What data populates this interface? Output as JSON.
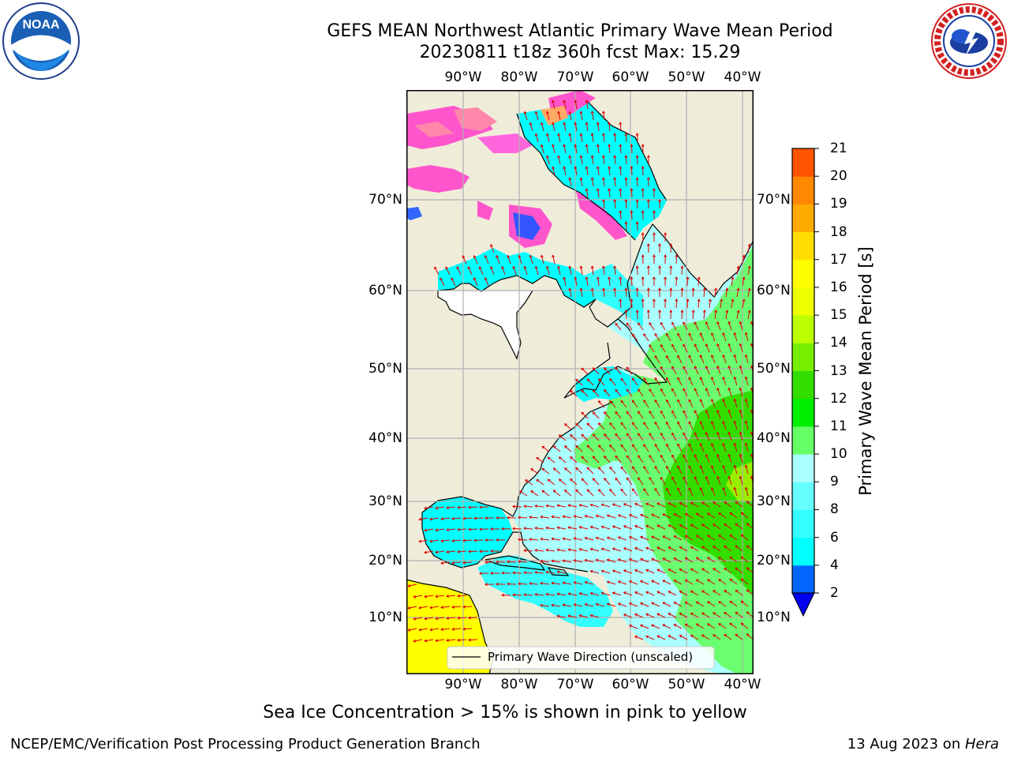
{
  "title": {
    "line1": "GEFS MEAN Northwest Atlantic Primary Wave Mean Period",
    "line2": "20230811 t18z 360h fcst   Max: 15.29"
  },
  "lon_labels": [
    "90°W",
    "80°W",
    "70°W",
    "60°W",
    "50°W",
    "40°W"
  ],
  "lat_labels": [
    "70°N",
    "60°N",
    "50°N",
    "40°N",
    "30°N",
    "20°N",
    "10°N"
  ],
  "legend": {
    "label": "Primary Wave Direction (unscaled)"
  },
  "colorbar": {
    "title": "Primary Wave Mean Period [s]",
    "ticks": [
      "2",
      "4",
      "6",
      "8",
      "9",
      "10",
      "11",
      "12",
      "13",
      "14",
      "15",
      "16",
      "17",
      "18",
      "19",
      "20",
      "21"
    ],
    "colors": [
      "#0066ff",
      "#00ffff",
      "#33ffff",
      "#66ffff",
      "#aaffff",
      "#66ff66",
      "#00ee00",
      "#33dd00",
      "#77ee00",
      "#bbff00",
      "#eeff00",
      "#ffff00",
      "#ffdd00",
      "#ffaa00",
      "#ff8800",
      "#ff5500",
      "#ff2200",
      "#ff0000"
    ],
    "under_color": "#0000ee"
  },
  "logos": {
    "noaa": "NOAA",
    "nws": "NATIONAL WEATHER SERVICE"
  },
  "note": "Sea Ice Concentration > 15% is shown in pink to yellow",
  "footer": {
    "left": "NCEP/EMC/Verification Post Processing Product Generation Branch",
    "date": "13 Aug 2023 on ",
    "machine": "Hera"
  }
}
